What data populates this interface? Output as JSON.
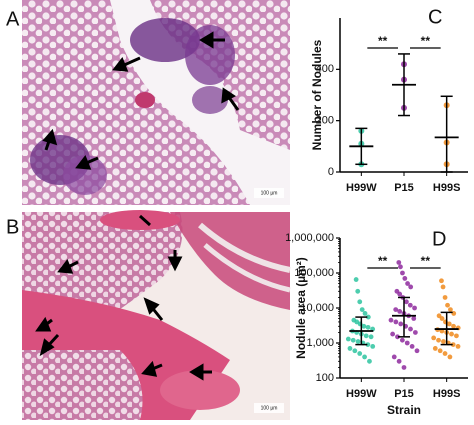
{
  "images": [
    {
      "label": "A",
      "scale_bar": "100 µm"
    },
    {
      "label": "B",
      "scale_bar": "100 µm"
    }
  ],
  "chart_data": [
    {
      "type": "dot",
      "label": "C",
      "ylabel": "Number of Nodules",
      "categories": [
        "H99W",
        "P15",
        "H99S"
      ],
      "colors": [
        "#2ec4a0",
        "#8e2a9e",
        "#f08a1c"
      ],
      "points": [
        [
          160,
          110,
          30
        ],
        [
          420,
          360,
          250
        ],
        [
          260,
          115,
          30
        ]
      ],
      "mean": [
        100,
        340,
        135
      ],
      "err_low": [
        30,
        220,
        0
      ],
      "err_high": [
        170,
        460,
        295
      ],
      "ylim": [
        0,
        600
      ],
      "yticks": [
        0,
        200,
        400
      ],
      "log": false,
      "annotations": [
        "**",
        "**"
      ]
    },
    {
      "type": "dot",
      "label": "D",
      "ylabel": "Nodule area (µm²)",
      "xlabel": "Strain",
      "categories": [
        "H99W",
        "P15",
        "H99S"
      ],
      "colors": [
        "#2ec4a0",
        "#8e2a9e",
        "#f08a1c"
      ],
      "points": [
        [
          65000,
          30000,
          15000,
          9000,
          7000,
          5500,
          4500,
          4000,
          3500,
          3000,
          2800,
          2500,
          2200,
          2000,
          1800,
          1600,
          1500,
          1300,
          1200,
          1100,
          1000,
          900,
          800,
          700,
          600,
          500,
          400,
          300
        ],
        [
          200000,
          150000,
          100000,
          70000,
          50000,
          40000,
          30000,
          25000,
          20000,
          15000,
          12000,
          10000,
          9000,
          8000,
          7000,
          6000,
          5000,
          4500,
          4000,
          3500,
          3000,
          2500,
          2000,
          1800,
          1500,
          1200,
          1000,
          800,
          600,
          400,
          300,
          200
        ],
        [
          60000,
          40000,
          20000,
          12000,
          9000,
          7000,
          6000,
          5000,
          4000,
          3500,
          3000,
          2700,
          2400,
          2200,
          2000,
          1800,
          1600,
          1400,
          1200,
          1100,
          1000,
          900,
          800,
          700,
          600,
          500,
          400
        ]
      ],
      "mean": [
        2200,
        6000,
        2500
      ],
      "err_low": [
        900,
        1500,
        900
      ],
      "err_high": [
        5500,
        20000,
        7500
      ],
      "ylim": [
        100,
        1000000
      ],
      "yticks": [
        100,
        {
          "value": 1000,
          "label": "1,000"
        },
        {
          "value": 10000,
          "label": "10,000"
        },
        {
          "value": 100000,
          "label": "100,000"
        },
        {
          "value": 1000000,
          "label": "1,000,000"
        }
      ],
      "log": true,
      "annotations": [
        "**",
        "**"
      ]
    }
  ]
}
